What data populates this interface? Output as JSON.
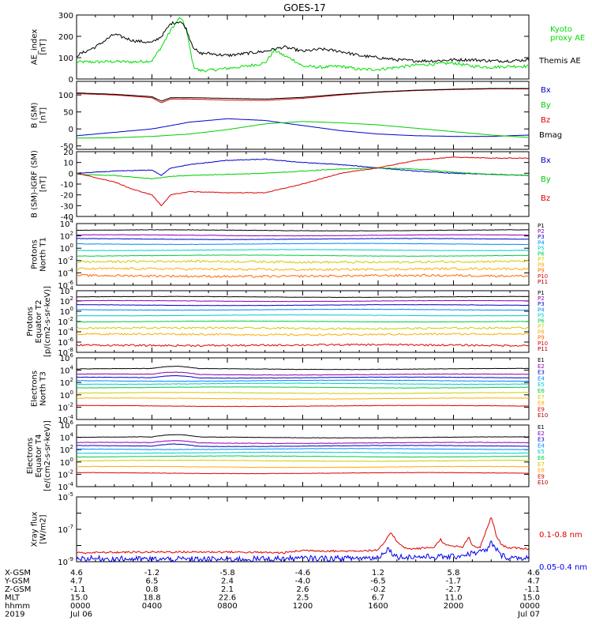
{
  "title": "GOES-17",
  "chart_data": [
    {
      "type": "line",
      "key": "ae",
      "ylabel": "AE_index\n[nT]",
      "ylim": [
        0,
        300
      ],
      "yticks": [
        0,
        100,
        200,
        300
      ],
      "series": [
        {
          "name": "Kyoto\nproxy AE",
          "color": "#00dd00",
          "x": [
            0,
            1,
            2,
            3,
            4,
            4.5,
            5,
            5.5,
            5.8,
            6,
            6.2,
            6.5,
            7,
            8,
            9,
            10,
            10.5,
            11,
            11.5,
            12,
            13,
            14,
            15,
            16,
            17,
            18,
            19,
            20,
            21,
            22,
            23,
            24
          ],
          "y": [
            80,
            80,
            82,
            80,
            85,
            150,
            230,
            290,
            240,
            150,
            60,
            40,
            40,
            50,
            60,
            75,
            135,
            110,
            90,
            60,
            55,
            60,
            45,
            45,
            55,
            65,
            70,
            75,
            60,
            55,
            60,
            60
          ]
        },
        {
          "name": "Themis AE",
          "color": "#000000",
          "x": [
            0,
            1,
            2,
            3,
            4,
            4.5,
            5,
            5.5,
            5.8,
            6,
            6.2,
            6.5,
            7,
            8,
            9,
            10,
            10.5,
            11,
            11.5,
            12,
            13,
            14,
            15,
            16,
            17,
            18,
            19,
            20,
            21,
            22,
            23,
            24
          ],
          "y": [
            110,
            150,
            210,
            180,
            170,
            200,
            260,
            270,
            240,
            190,
            150,
            120,
            120,
            110,
            120,
            130,
            140,
            150,
            140,
            130,
            140,
            130,
            110,
            100,
            90,
            85,
            85,
            90,
            90,
            85,
            85,
            90
          ]
        }
      ]
    },
    {
      "type": "line",
      "key": "bsm",
      "ylabel": "B (SM)\n[nT]",
      "ylim": [
        -60,
        140
      ],
      "yticks": [
        -50,
        0,
        50,
        100
      ],
      "series": [
        {
          "name": "Bx",
          "color": "#0000cc",
          "x": [
            0,
            2,
            4,
            5,
            6,
            8,
            10,
            12,
            14,
            16,
            18,
            20,
            22,
            24
          ],
          "y": [
            -20,
            -10,
            0,
            10,
            20,
            30,
            25,
            10,
            -5,
            -15,
            -20,
            -22,
            -22,
            -18
          ]
        },
        {
          "name": "By",
          "color": "#00cc00",
          "x": [
            0,
            2,
            4,
            6,
            8,
            10,
            12,
            14,
            16,
            18,
            20,
            22,
            24
          ],
          "y": [
            -27,
            -26,
            -22,
            -15,
            -2,
            15,
            22,
            18,
            12,
            2,
            -8,
            -18,
            -25
          ]
        },
        {
          "name": "Bz",
          "color": "#dd0000",
          "x": [
            0,
            2,
            4,
            4.5,
            5,
            6,
            8,
            10,
            12,
            14,
            16,
            18,
            20,
            22,
            24
          ],
          "y": [
            104,
            100,
            92,
            77,
            88,
            88,
            85,
            84,
            90,
            100,
            108,
            113,
            116,
            118,
            118
          ]
        },
        {
          "name": "Bmag",
          "color": "#000000",
          "x": [
            0,
            2,
            4,
            4.5,
            5,
            6,
            8,
            10,
            12,
            14,
            16,
            18,
            20,
            22,
            24
          ],
          "y": [
            106,
            102,
            95,
            82,
            92,
            92,
            90,
            88,
            93,
            102,
            109,
            114,
            117,
            119,
            119
          ]
        }
      ]
    },
    {
      "type": "line",
      "key": "bigrf",
      "ylabel": "B (SM)-IGRF (SM)\n[nT]",
      "ylim": [
        -40,
        20
      ],
      "yticks": [
        -40,
        -30,
        -20,
        -10,
        0,
        10,
        20
      ],
      "series": [
        {
          "name": "Bx",
          "color": "#0000cc",
          "x": [
            0,
            2,
            4,
            4.5,
            5,
            6,
            8,
            10,
            12,
            14,
            16,
            18,
            20,
            22,
            24
          ],
          "y": [
            0,
            2,
            3,
            -2,
            5,
            8,
            12,
            13,
            10,
            8,
            5,
            2,
            0,
            -1,
            -2
          ]
        },
        {
          "name": "By",
          "color": "#00cc00",
          "x": [
            0,
            2,
            4,
            5,
            6,
            8,
            10,
            12,
            14,
            16,
            18,
            20,
            22,
            24
          ],
          "y": [
            -1,
            -2,
            -5,
            -3,
            -2,
            -1,
            0,
            2,
            4,
            5,
            4,
            1,
            -1,
            -2
          ]
        },
        {
          "name": "Bz",
          "color": "#dd0000",
          "x": [
            0,
            1,
            2,
            3,
            4,
            4.5,
            5,
            6,
            8,
            10,
            12,
            14,
            16,
            18,
            20,
            22,
            24
          ],
          "y": [
            0,
            -4,
            -8,
            -15,
            -20,
            -30,
            -20,
            -17,
            -18,
            -18,
            -10,
            0,
            5,
            12,
            15,
            14,
            14
          ]
        }
      ]
    },
    {
      "type": "line",
      "key": "pn",
      "log": true,
      "ylabel": "Protons\nNorth T1",
      "ylim": [
        -6,
        4
      ],
      "yticks": [
        -6,
        -4,
        -2,
        0,
        2,
        4
      ],
      "tick_labels": [
        "10-6",
        "10-4",
        "10-2",
        "100",
        "102",
        "104"
      ],
      "series": [
        {
          "name": "P1",
          "color": "#000000",
          "level": 2.9
        },
        {
          "name": "P2",
          "color": "#8800aa",
          "level": 2.1
        },
        {
          "name": "P3",
          "color": "#0000cc",
          "level": 1.5
        },
        {
          "name": "P4",
          "color": "#0088ff",
          "level": 0.7
        },
        {
          "name": "P5",
          "color": "#00cccc",
          "level": -0.3
        },
        {
          "name": "P6",
          "color": "#00cc44",
          "level": -1.2
        },
        {
          "name": "P7",
          "color": "#cccc00",
          "level": -2.2
        },
        {
          "name": "P8",
          "color": "#ffaa00",
          "level": -3.4
        },
        {
          "name": "P9",
          "color": "#ff6600",
          "level": -4.5
        },
        {
          "name": "P10",
          "color": "#dd0000"
        },
        {
          "name": "P11",
          "color": "#aa0000"
        }
      ]
    },
    {
      "type": "line",
      "key": "pe",
      "log": true,
      "ylabel": "Protons\nEquator T2\n[p/(cm2-s-sr-keV)]",
      "ylim": [
        -8,
        4
      ],
      "yticks": [
        -8,
        -6,
        -4,
        -2,
        0,
        2,
        4
      ],
      "tick_labels": [
        "10-8",
        "10-6",
        "10-4",
        "10-2",
        "100",
        "102",
        "104"
      ],
      "series": [
        {
          "name": "P1",
          "color": "#000000",
          "level": 2.8
        },
        {
          "name": "P2",
          "color": "#8800aa",
          "level": 2.0
        },
        {
          "name": "P3",
          "color": "#0000cc",
          "level": 1.2
        },
        {
          "name": "P4",
          "color": "#0088ff",
          "level": 0.3
        },
        {
          "name": "P5",
          "color": "#00cccc",
          "level": -0.8
        },
        {
          "name": "P6",
          "color": "#00cc44",
          "level": -2.0
        },
        {
          "name": "P7",
          "color": "#cccc00",
          "level": -3.3
        },
        {
          "name": "P8",
          "color": "#ffaa00",
          "level": -4.5
        },
        {
          "name": "P9",
          "color": "#ff6600"
        },
        {
          "name": "P10",
          "color": "#dd0000",
          "level": -6.6
        },
        {
          "name": "P11",
          "color": "#aa0000"
        }
      ]
    },
    {
      "type": "line",
      "key": "en",
      "log": true,
      "ylabel": "Electrons\nNorth T3",
      "ylim": [
        -4,
        6
      ],
      "yticks": [
        -4,
        -2,
        0,
        2,
        4,
        6
      ],
      "tick_labels": [
        "10-4",
        "10-2",
        "100",
        "102",
        "104",
        "106"
      ],
      "series": [
        {
          "name": "E1",
          "color": "#000000",
          "level": 4.2
        },
        {
          "name": "E2",
          "color": "#8800aa",
          "level": 3.3
        },
        {
          "name": "E3",
          "color": "#0000cc",
          "level": 2.8
        },
        {
          "name": "E4",
          "color": "#0088ff",
          "level": 2.3
        },
        {
          "name": "E5",
          "color": "#00cccc",
          "level": 1.8
        },
        {
          "name": "E6",
          "color": "#00cc44",
          "level": 1.2
        },
        {
          "name": "E7",
          "color": "#cccc00",
          "level": 0.3
        },
        {
          "name": "E8",
          "color": "#ffaa00",
          "level": -0.6
        },
        {
          "name": "E9",
          "color": "#dd0000",
          "level": -1.8
        },
        {
          "name": "E10",
          "color": "#aa0000"
        }
      ]
    },
    {
      "type": "line",
      "key": "ee",
      "log": true,
      "ylabel": "Electrons\nEquator T4\n[e/(cm2-s-sr-keV)]",
      "ylim": [
        -4,
        6
      ],
      "yticks": [
        -4,
        -2,
        0,
        2,
        4,
        6
      ],
      "tick_labels": [
        "10-4",
        "10-2",
        "100",
        "102",
        "104",
        "106"
      ],
      "series": [
        {
          "name": "E1",
          "color": "#000000",
          "level": 4.0
        },
        {
          "name": "E2",
          "color": "#8800aa",
          "level": 3.1
        },
        {
          "name": "E3",
          "color": "#0000cc",
          "level": 2.6
        },
        {
          "name": "E4",
          "color": "#0088ff",
          "level": 2.1
        },
        {
          "name": "E5",
          "color": "#00cccc",
          "level": 1.5
        },
        {
          "name": "E6",
          "color": "#00cc44",
          "level": 0.9
        },
        {
          "name": "E7",
          "color": "#cccc00",
          "level": 0.2
        },
        {
          "name": "E8",
          "color": "#ffaa00",
          "level": -0.8
        },
        {
          "name": "E9",
          "color": "#dd0000",
          "level": -1.8
        },
        {
          "name": "E10",
          "color": "#aa0000"
        }
      ]
    },
    {
      "type": "line",
      "key": "xray",
      "log": true,
      "ylabel": "Xray flux\n[W/m2]",
      "ylim": [
        -9,
        -5
      ],
      "yticks": [
        -9,
        -8,
        -7,
        -6,
        -5
      ],
      "tick_labels": [
        "10-9",
        "",
        "10-7",
        "",
        "10-5"
      ],
      "series": [
        {
          "name": "0.1-0.8 nm",
          "color": "#dd0000",
          "x": [
            0,
            4,
            8,
            11,
            12,
            14,
            16,
            16.4,
            16.7,
            17,
            17.5,
            18,
            19,
            19.3,
            19.6,
            20.5,
            20.8,
            21,
            21.4,
            21.8,
            22,
            22.3,
            22.6,
            23,
            24
          ],
          "y": [
            -8.45,
            -8.4,
            -8.4,
            -8.45,
            -8.3,
            -8.35,
            -8.3,
            -7.7,
            -7.2,
            -7.75,
            -8.2,
            -8.2,
            -8.1,
            -7.6,
            -8.0,
            -8.1,
            -7.5,
            -8.0,
            -8.15,
            -6.9,
            -6.2,
            -7.5,
            -8.0,
            -8.15,
            -8.2
          ]
        },
        {
          "name": "0.05-0.4 nm",
          "color": "#0000ee",
          "x": [
            0,
            4,
            8,
            12,
            14,
            16,
            16.5,
            17,
            18,
            20,
            21.8,
            22,
            22.5,
            23,
            24
          ],
          "y": [
            -8.8,
            -8.85,
            -8.85,
            -8.8,
            -8.8,
            -8.75,
            -8.2,
            -8.7,
            -8.7,
            -8.7,
            -8.3,
            -7.8,
            -8.6,
            -8.75,
            -8.75
          ]
        }
      ]
    }
  ],
  "footer": {
    "rows": [
      {
        "label": "X-GSM",
        "values": [
          "4.6",
          "-1.2",
          "-5.8",
          "-4.6",
          "1.2",
          "5.8",
          "4.6"
        ]
      },
      {
        "label": "Y-GSM",
        "values": [
          "4.7",
          "6.5",
          "2.4",
          "-4.0",
          "-6.5",
          "-1.7",
          "4.7"
        ]
      },
      {
        "label": "Z-GSM",
        "values": [
          "-1.1",
          "0.8",
          "2.1",
          "2.6",
          "-0.2",
          "-2.7",
          "-1.1"
        ]
      },
      {
        "label": "MLT",
        "values": [
          "15.0",
          "18.8",
          "22.6",
          "2.5",
          "6.7",
          "11.0",
          "15.0"
        ]
      },
      {
        "label": "hhmm",
        "values": [
          "0000",
          "0400",
          "0800",
          "1200",
          "1600",
          "2000",
          "0000"
        ]
      },
      {
        "label": "2019",
        "values": [
          "Jul 06",
          "",
          "",
          "",
          "",
          "",
          "Jul 07"
        ]
      }
    ]
  }
}
